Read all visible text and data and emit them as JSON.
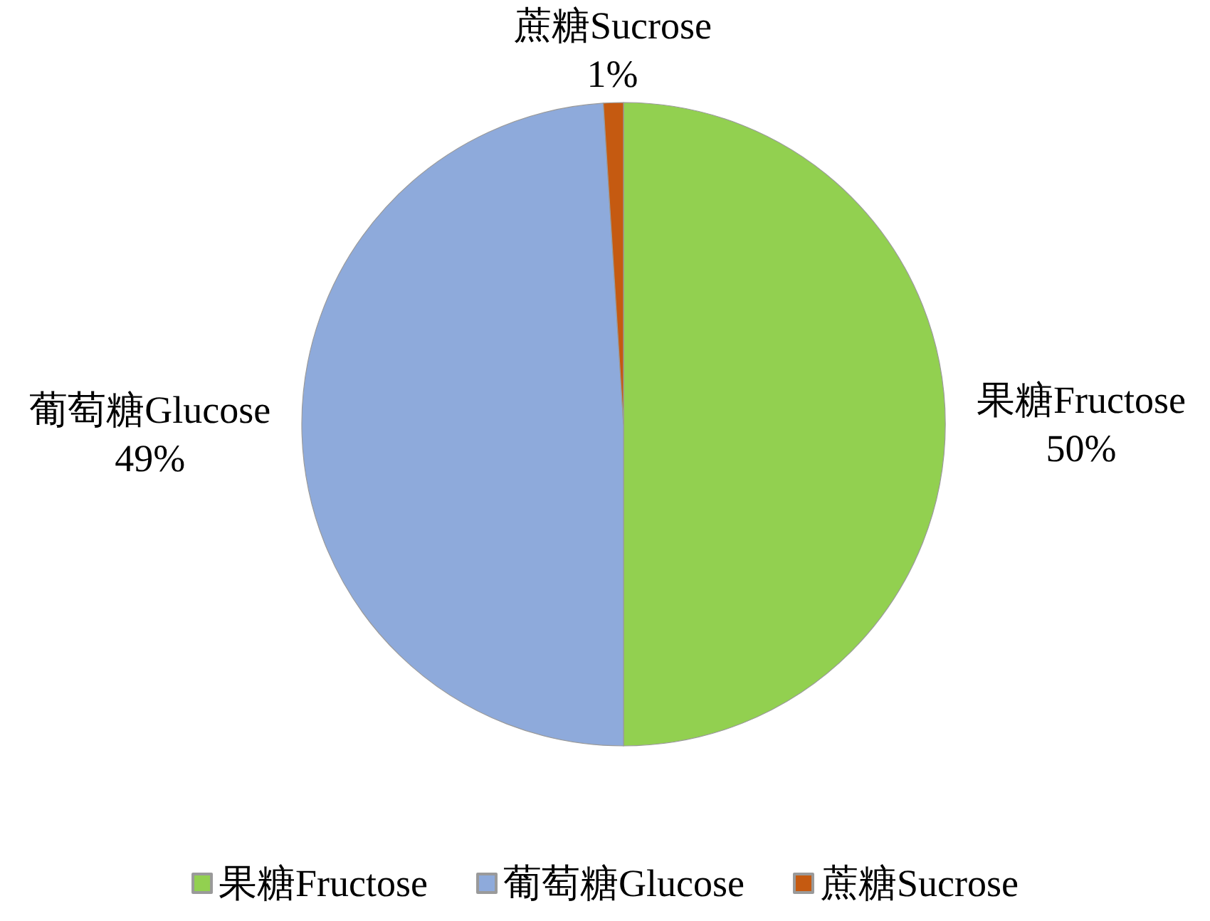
{
  "chart_data": {
    "type": "pie",
    "categories": [
      "果糖Fructose",
      "葡萄糖Glucose",
      "蔗糖Sucrose"
    ],
    "values": [
      50,
      49,
      1
    ],
    "colors": [
      "#92d050",
      "#8eaadb",
      "#c55a11"
    ],
    "value_labels": [
      "50%",
      "49%",
      "1%"
    ],
    "legend": "bottom"
  }
}
